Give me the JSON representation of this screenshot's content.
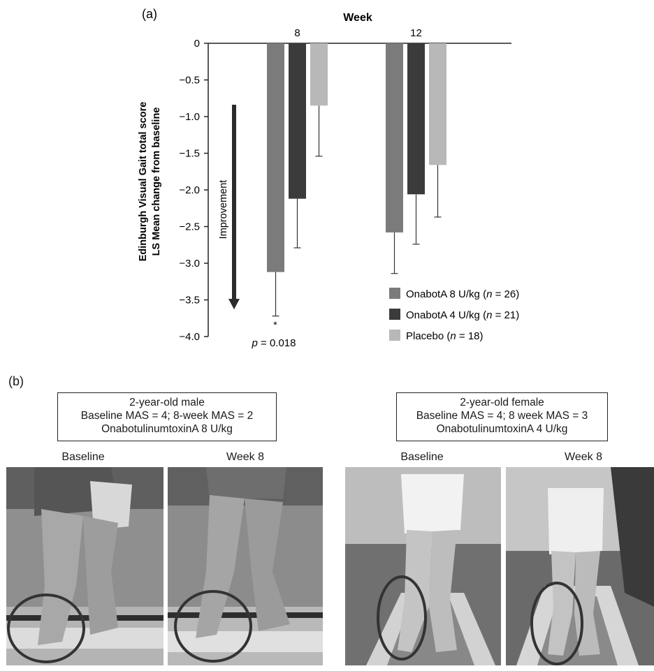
{
  "panel_a_label": "(a)",
  "panel_b_label": "(b)",
  "chart_data": {
    "type": "bar",
    "title": "Week",
    "categories": [
      "8",
      "12"
    ],
    "ylabel_line1": "Edinburgh Visual Gait total score",
    "ylabel_line2": "LS Mean change from baseline",
    "ylim": [
      -4.0,
      0
    ],
    "yticks": [
      "0",
      "−0.5",
      "−1.0",
      "−1.5",
      "−2.0",
      "−2.5",
      "−3.0",
      "−3.5",
      "−4.0"
    ],
    "grid": false,
    "legend_position": "bottom-right",
    "series": [
      {
        "name": "OnabotA 8 U/kg (n = 26)",
        "name_prefix": "OnabotA 8 U/kg (",
        "name_n": "n",
        "name_suffix": " = 26)",
        "color": "#7b7b7b",
        "values": [
          -3.12,
          -2.58
        ],
        "error_low": [
          -3.72,
          -3.14
        ]
      },
      {
        "name": "OnabotA 4 U/kg (n = 21)",
        "name_prefix": "OnabotA 4 U/kg (",
        "name_n": "n",
        "name_suffix": " = 21)",
        "color": "#3b3b3b",
        "values": [
          -2.12,
          -2.06
        ],
        "error_low": [
          -2.79,
          -2.74
        ]
      },
      {
        "name": "Placebo (n = 18)",
        "name_prefix": "Placebo (",
        "name_n": "n",
        "name_suffix": " = 18)",
        "color": "#b8b8b8",
        "values": [
          -0.85,
          -1.66
        ],
        "error_low": [
          -1.54,
          -2.37
        ]
      }
    ],
    "annotation_arrow_label": "Improvement",
    "significance_marker": "*",
    "pvalue_p": "p",
    "pvalue_rest": " = 0.018"
  },
  "panel_b": {
    "male": {
      "caption_line1": "2-year-old male",
      "caption_line2": "Baseline MAS = 4; 8-week MAS = 2",
      "caption_line3": "OnabotulinumtoxinA 8 U/kg",
      "photo_left_title": "Baseline",
      "photo_right_title": "Week 8"
    },
    "female": {
      "caption_line1": "2-year-old female",
      "caption_line2": "Baseline MAS = 4; 8 week MAS = 3",
      "caption_line3": "OnabotulinumtoxinA 4 U/kg",
      "photo_left_title": "Baseline",
      "photo_right_title": "Week 8"
    }
  }
}
